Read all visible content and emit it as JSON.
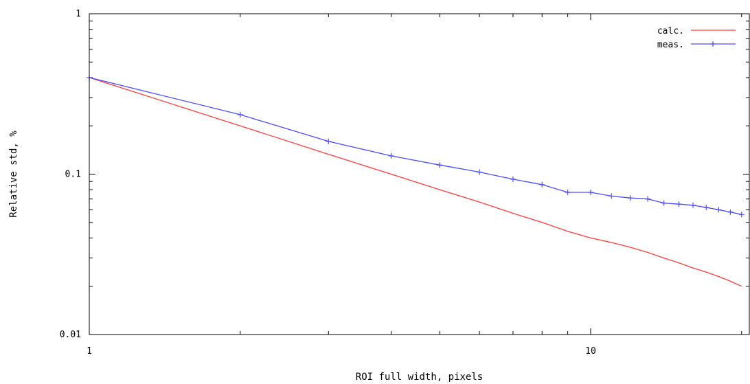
{
  "chart_data": {
    "type": "line",
    "title": "",
    "xlabel": "ROI full width, pixels",
    "ylabel": "Relative std, %",
    "x_scale": "log",
    "y_scale": "log",
    "xlim": [
      1,
      20
    ],
    "ylim": [
      0.01,
      1
    ],
    "x_ticks": [
      {
        "value": 1,
        "label": "1"
      },
      {
        "value": 10,
        "label": "10"
      }
    ],
    "y_ticks": [
      {
        "value": 0.01,
        "label": "0.01"
      },
      {
        "value": 0.1,
        "label": "0.1"
      },
      {
        "value": 1,
        "label": "1"
      }
    ],
    "grid": false,
    "legend_position": "top-right",
    "series": [
      {
        "name": "calc.",
        "color": "#ff3a3a",
        "marker": "none",
        "x": [
          1,
          2,
          3,
          4,
          5,
          6,
          7,
          8,
          9,
          10,
          11,
          12,
          13,
          14,
          15,
          16,
          17,
          18,
          19,
          20
        ],
        "y": [
          0.4,
          0.2,
          0.133,
          0.1,
          0.08,
          0.067,
          0.057,
          0.05,
          0.044,
          0.04,
          0.0375,
          0.035,
          0.0325,
          0.03,
          0.028,
          0.026,
          0.0245,
          0.023,
          0.0215,
          0.02
        ]
      },
      {
        "name": "meas.",
        "color": "#4a4aff",
        "marker": "cross",
        "x": [
          1,
          2,
          3,
          4,
          5,
          6,
          7,
          8,
          9,
          10,
          11,
          12,
          13,
          14,
          15,
          16,
          17,
          18,
          19,
          20
        ],
        "y": [
          0.4,
          0.235,
          0.16,
          0.13,
          0.114,
          0.103,
          0.093,
          0.086,
          0.077,
          0.077,
          0.073,
          0.071,
          0.07,
          0.066,
          0.065,
          0.064,
          0.062,
          0.06,
          0.058,
          0.056
        ]
      }
    ]
  }
}
